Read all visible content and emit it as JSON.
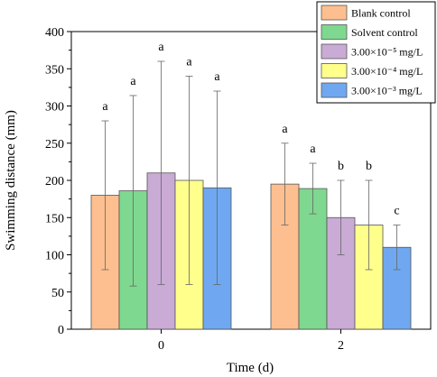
{
  "chart_data": {
    "type": "bar",
    "xlabel": "Time (d)",
    "ylabel": "Swimming distance (mm)",
    "ylim": [
      0,
      400
    ],
    "yticks": [
      "0",
      "50",
      "100",
      "150",
      "200",
      "250",
      "300",
      "350",
      "400"
    ],
    "categories": [
      "0",
      "2"
    ],
    "legend_position": "top-right",
    "series": [
      {
        "name": "Blank control",
        "color": "#FDBF8F",
        "values": [
          180,
          195
        ],
        "error": [
          100,
          55
        ],
        "letters": [
          "a",
          "a"
        ]
      },
      {
        "name": "Solvent control",
        "color": "#7FD88F",
        "values": [
          186,
          189
        ],
        "error": [
          128,
          34
        ],
        "letters": [
          "a",
          "a"
        ]
      },
      {
        "name": "3.00×10⁻⁵ mg/L",
        "color": "#C9ABD6",
        "values": [
          210,
          150
        ],
        "error": [
          150,
          50
        ],
        "letters": [
          "a",
          "b"
        ]
      },
      {
        "name": "3.00×10⁻⁴ mg/L",
        "color": "#FFFF8C",
        "values": [
          200,
          140
        ],
        "error": [
          140,
          60
        ],
        "letters": [
          "a",
          "b"
        ]
      },
      {
        "name": "3.00×10⁻³ mg/L",
        "color": "#6FA8F0",
        "values": [
          190,
          110
        ],
        "error": [
          130,
          30
        ],
        "letters": [
          "a",
          "c"
        ]
      }
    ]
  }
}
